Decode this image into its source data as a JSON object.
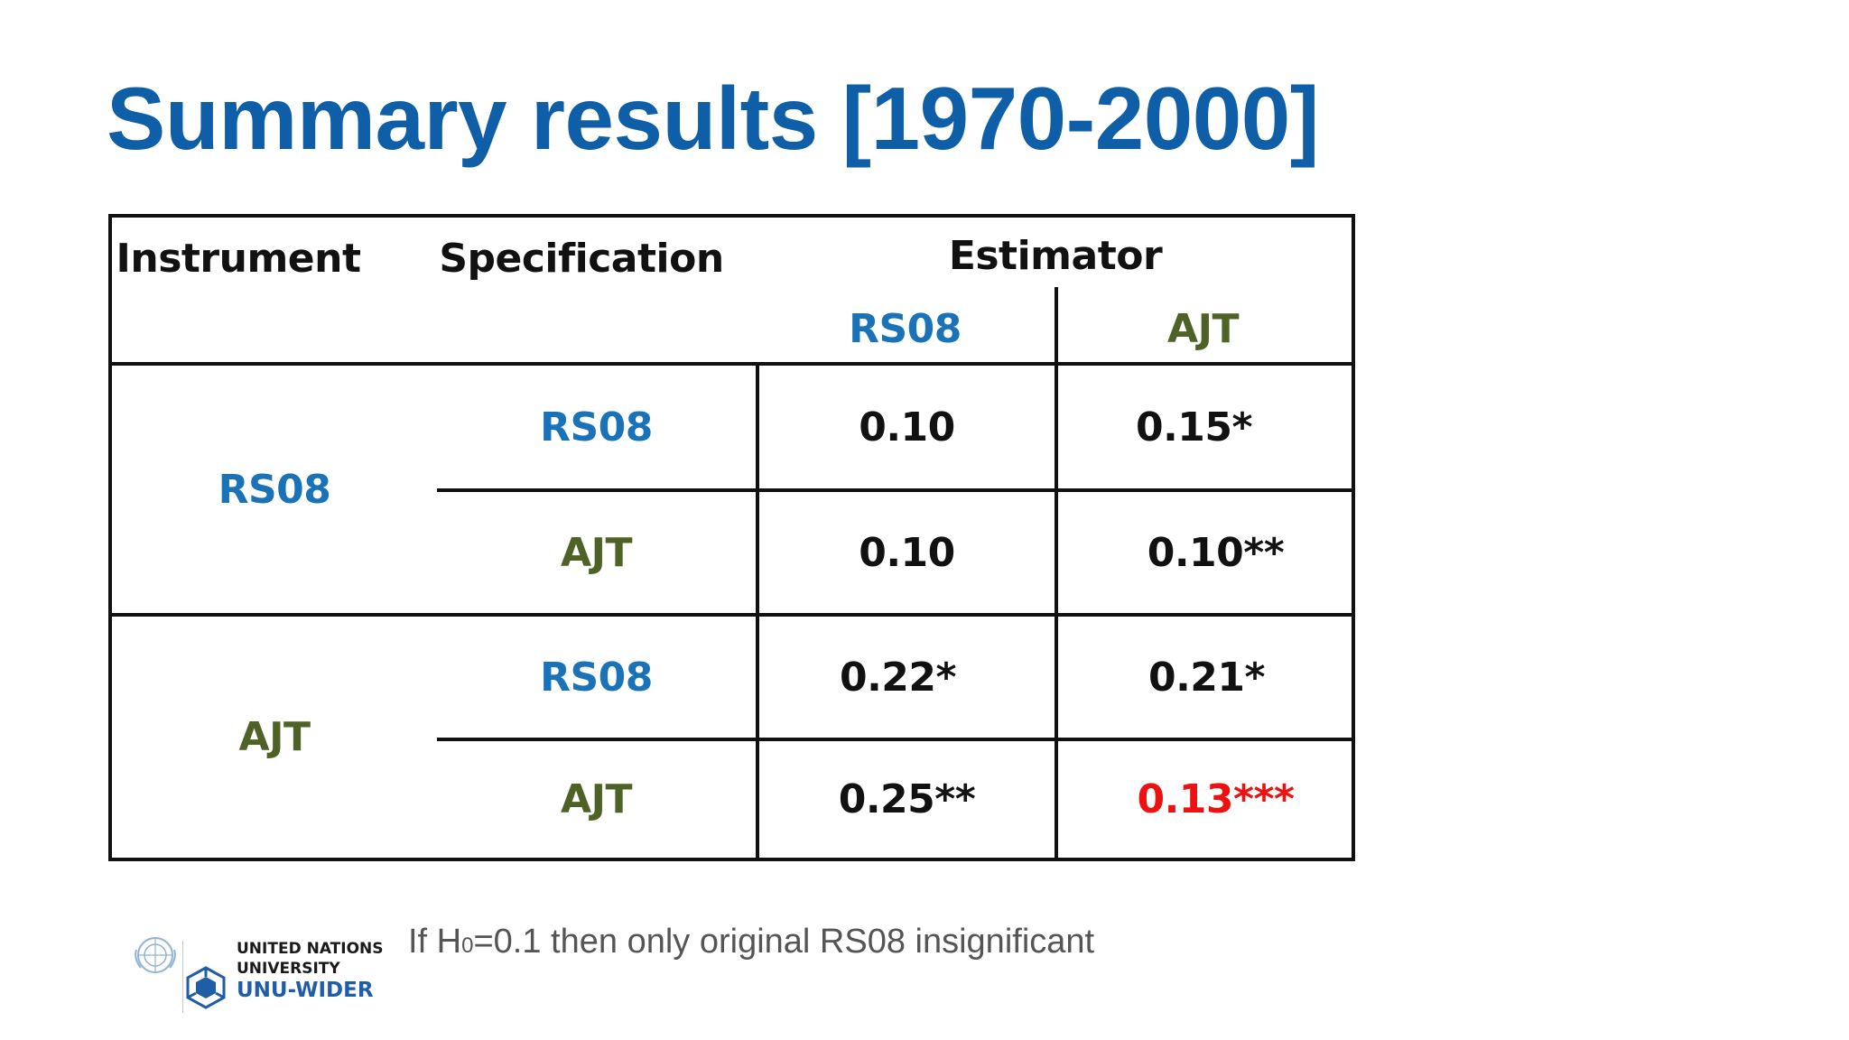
{
  "title": "Summary results [1970-2000]",
  "table": {
    "headers": {
      "instrument": "Instrument",
      "specification": "Specification",
      "estimator": "Estimator",
      "estimator_cols": [
        "RS08",
        "AJT"
      ]
    },
    "groups": [
      {
        "instrument": "RS08",
        "rows": [
          {
            "specification": "RS08",
            "values": [
              "0.10",
              "0.15*"
            ]
          },
          {
            "specification": "AJT",
            "values": [
              "0.10",
              "0.10**"
            ]
          }
        ]
      },
      {
        "instrument": "AJT",
        "rows": [
          {
            "specification": "RS08",
            "values": [
              "0.22*",
              "0.21*"
            ]
          },
          {
            "specification": "AJT",
            "values": [
              "0.25**",
              "0.13***"
            ]
          }
        ]
      }
    ]
  },
  "colors": {
    "title": "#0f5ea8",
    "rs08": "#1a73b8",
    "ajt": "#4e6226",
    "highlight": "#ee1111"
  },
  "footer": {
    "note_prefix": "If H",
    "note_sub": "0",
    "note_suffix": "=0.1 then only original RS08 insignificant"
  },
  "logo": {
    "line1": "UNITED NATIONS",
    "line2": "UNIVERSITY",
    "line3": "UNU-WIDER",
    "icons": [
      "un-emblem-icon",
      "unu-wider-cube-icon"
    ]
  }
}
